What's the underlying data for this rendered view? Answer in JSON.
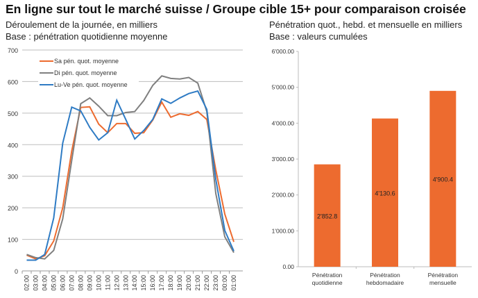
{
  "title": "En ligne sur tout le marché suisse / Groupe cible 15+ pour comparaison croisée",
  "colors": {
    "orange": "#ED6B2F",
    "gray": "#7F7F7F",
    "blue": "#2E7BC4"
  },
  "chart_data": [
    {
      "type": "line",
      "subtitle1": "Déroulement de la journée, en milliers",
      "subtitle2": "Base : pénétration quotidienne moyenne",
      "categories": [
        "02:00",
        "03:00",
        "04:00",
        "05:00",
        "06:00",
        "07:00",
        "08:00",
        "09:00",
        "10:00",
        "11:00",
        "12:00",
        "13:00",
        "14:00",
        "15:00",
        "16:00",
        "17:00",
        "18:00",
        "19:00",
        "20:00",
        "21:00",
        "22:00",
        "23:00",
        "00:00",
        "01:00"
      ],
      "ylim": [
        0,
        700
      ],
      "yticks": [
        "0",
        "100",
        "200",
        "300",
        "400",
        "500",
        "600",
        "700"
      ],
      "grid": true,
      "legend": "top-left",
      "series": [
        {
          "name": "Sa pén. quot. moyenne",
          "color": "#ED6B2F",
          "values": [
            50,
            38,
            48,
            95,
            200,
            380,
            518,
            520,
            465,
            438,
            467,
            467,
            436,
            438,
            478,
            535,
            487,
            498,
            493,
            505,
            480,
            320,
            180,
            92
          ]
        },
        {
          "name": "Di pén. quot. moyenne",
          "color": "#7F7F7F",
          "values": [
            52,
            42,
            38,
            65,
            165,
            350,
            530,
            548,
            522,
            492,
            492,
            502,
            505,
            540,
            588,
            618,
            610,
            608,
            613,
            595,
            505,
            245,
            108,
            58
          ]
        },
        {
          "name": "Lu-Ve pén. quot. moyenne",
          "color": "#2E7BC4",
          "values": [
            34,
            34,
            52,
            168,
            405,
            519,
            507,
            455,
            415,
            438,
            541,
            480,
            418,
            445,
            480,
            545,
            531,
            548,
            562,
            570,
            512,
            290,
            128,
            63
          ]
        }
      ]
    },
    {
      "type": "bar",
      "subtitle1": "Pénétration quot., hebd. et mensuelle en milliers",
      "subtitle2": "Base : valeurs cumulées",
      "categories": [
        [
          "Pénétration",
          "quotidienne"
        ],
        [
          "Pénétration",
          "hebdomadaire"
        ],
        [
          "Pénétration",
          "mensuelle"
        ]
      ],
      "values": [
        2852.8,
        4130.6,
        4900.4
      ],
      "labels": [
        "2'852.8",
        "4'130.6",
        "4'900.4"
      ],
      "ylim": [
        0,
        6000
      ],
      "yticks": [
        "0.00",
        "1'000.00",
        "2'000.00",
        "3'000.00",
        "4'000.00",
        "5'000.00",
        "6'000.00"
      ],
      "color": "#ED6B2F",
      "grid": false
    }
  ]
}
